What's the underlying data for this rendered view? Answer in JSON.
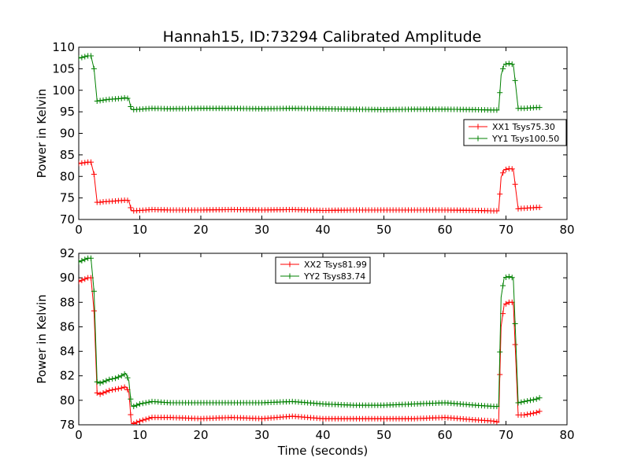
{
  "figure": {
    "title": "Hannah15, ID:73294 Calibrated Amplitude"
  },
  "chart_data": [
    {
      "type": "line",
      "title": "Hannah15, ID:73294 Calibrated Amplitude",
      "xlabel": "",
      "ylabel": "Power in Kelvin",
      "xlim": [
        0,
        80
      ],
      "ylim": [
        70,
        110
      ],
      "xticks": [
        "0",
        "10",
        "20",
        "30",
        "40",
        "50",
        "60",
        "70",
        "80"
      ],
      "yticks": [
        "70",
        "75",
        "80",
        "85",
        "90",
        "95",
        "100",
        "105",
        "110"
      ],
      "grid": false,
      "legend_position": "center-right",
      "series": [
        {
          "name": "XX1 Tsys75.30",
          "color": "#ff0000",
          "x": [
            0,
            0.5,
            1,
            1.5,
            2,
            2.5,
            3,
            3.5,
            4,
            5,
            6,
            7,
            7.7,
            8.2,
            8.6,
            9,
            10,
            12,
            15,
            20,
            25,
            30,
            35,
            40,
            45,
            50,
            55,
            60,
            65,
            68,
            68.8,
            69.2,
            69.7,
            70.5,
            71.2,
            71.6,
            72,
            73,
            74,
            75,
            75.5
          ],
          "y": [
            83.0,
            83.1,
            83.2,
            83.3,
            83.3,
            80.5,
            74.0,
            74.0,
            74.1,
            74.2,
            74.3,
            74.4,
            74.5,
            74.4,
            72.2,
            72.0,
            72.1,
            72.3,
            72.2,
            72.2,
            72.3,
            72.2,
            72.3,
            72.1,
            72.2,
            72.2,
            72.2,
            72.2,
            72.1,
            72.0,
            72.0,
            79.8,
            81.5,
            81.8,
            81.7,
            77.0,
            72.5,
            72.6,
            72.7,
            72.8,
            72.8
          ]
        },
        {
          "name": "YY1 Tsys100.50",
          "color": "#008000",
          "x": [
            0,
            0.5,
            1,
            1.5,
            2,
            2.5,
            3,
            3.5,
            4,
            5,
            6,
            7,
            7.7,
            8.2,
            8.6,
            9,
            10,
            12,
            15,
            20,
            25,
            30,
            35,
            40,
            45,
            50,
            55,
            60,
            65,
            68,
            68.8,
            69.2,
            69.7,
            70.5,
            71.2,
            71.6,
            72,
            73,
            74,
            75,
            75.5
          ],
          "y": [
            107.5,
            107.6,
            107.8,
            108.0,
            108.0,
            105.0,
            97.5,
            97.6,
            97.7,
            97.9,
            98.0,
            98.1,
            98.3,
            98.0,
            95.6,
            95.5,
            95.6,
            95.8,
            95.7,
            95.8,
            95.8,
            95.7,
            95.8,
            95.7,
            95.6,
            95.5,
            95.6,
            95.6,
            95.5,
            95.4,
            95.4,
            103.5,
            106.0,
            106.2,
            106.0,
            101.0,
            95.8,
            95.8,
            95.9,
            96.0,
            96.0
          ]
        }
      ]
    },
    {
      "type": "line",
      "title": "",
      "xlabel": "Time (seconds)",
      "ylabel": "Power in Kelvin",
      "xlim": [
        0,
        80
      ],
      "ylim": [
        78,
        92
      ],
      "xticks": [
        "0",
        "10",
        "20",
        "30",
        "40",
        "50",
        "60",
        "70",
        "80"
      ],
      "yticks": [
        "78",
        "80",
        "82",
        "84",
        "86",
        "88",
        "90",
        "92"
      ],
      "grid": false,
      "legend_position": "upper-center",
      "series": [
        {
          "name": "XX2 Tsys81.99",
          "color": "#ff0000",
          "x": [
            0,
            0.5,
            1,
            1.5,
            2,
            2.5,
            3,
            3.5,
            4,
            5,
            6,
            7,
            7.7,
            8.2,
            8.6,
            9,
            10,
            12,
            15,
            20,
            25,
            30,
            35,
            40,
            45,
            50,
            55,
            60,
            65,
            68,
            68.8,
            69.2,
            69.7,
            70.5,
            71.2,
            71.6,
            72,
            73,
            74,
            75,
            75.5
          ],
          "y": [
            89.7,
            89.8,
            89.9,
            90.0,
            90.0,
            87.3,
            80.6,
            80.5,
            80.6,
            80.8,
            80.9,
            81.0,
            81.1,
            80.7,
            78.2,
            78.1,
            78.3,
            78.6,
            78.6,
            78.5,
            78.6,
            78.5,
            78.7,
            78.5,
            78.5,
            78.5,
            78.5,
            78.6,
            78.4,
            78.3,
            78.2,
            86.0,
            87.8,
            88.0,
            88.0,
            83.4,
            78.8,
            78.8,
            78.9,
            79.0,
            79.1
          ]
        },
        {
          "name": "YY2 Tsys83.74",
          "color": "#008000",
          "x": [
            0,
            0.5,
            1,
            1.5,
            2,
            2.5,
            3,
            3.5,
            4,
            5,
            6,
            7,
            7.7,
            8.2,
            8.6,
            9,
            10,
            12,
            15,
            20,
            25,
            30,
            35,
            40,
            45,
            50,
            55,
            60,
            65,
            68,
            68.8,
            69.2,
            69.7,
            70.5,
            71.2,
            71.6,
            72,
            73,
            74,
            75,
            75.5
          ],
          "y": [
            91.3,
            91.4,
            91.5,
            91.6,
            91.6,
            88.9,
            81.5,
            81.4,
            81.5,
            81.7,
            81.8,
            82.0,
            82.2,
            81.6,
            79.6,
            79.5,
            79.7,
            79.9,
            79.8,
            79.8,
            79.8,
            79.8,
            79.9,
            79.7,
            79.6,
            79.6,
            79.7,
            79.8,
            79.6,
            79.5,
            79.5,
            88.4,
            90.0,
            90.1,
            90.0,
            85.0,
            79.8,
            79.9,
            80.0,
            80.1,
            80.2
          ]
        }
      ]
    }
  ]
}
